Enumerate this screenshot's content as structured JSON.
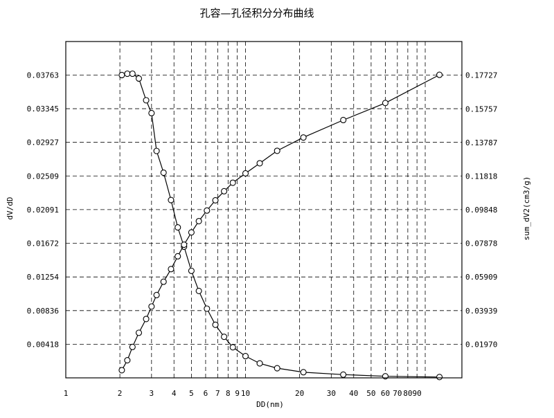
{
  "chart_data": {
    "type": "line",
    "title": "孔容—孔径积分分布曲线",
    "xlabel": "DD(nm)",
    "ylabel_left": "dV/dD",
    "ylabel_right": "sum_dV2(cm3/g)",
    "x_scale": "log",
    "xlim": [
      1,
      160
    ],
    "x_ticks": [
      1,
      2,
      3,
      4,
      5,
      6,
      7,
      8,
      9,
      10,
      20,
      30,
      40,
      50,
      60,
      70,
      80,
      90
    ],
    "x_tick_labels": [
      "1",
      "2",
      "3",
      "4",
      "5",
      "6",
      "7",
      "8",
      "9",
      "10",
      "20",
      "30",
      "40",
      "50",
      "60",
      "70",
      "80",
      "90"
    ],
    "x_grid_extra": [
      100
    ],
    "ylim_left": [
      0,
      0.0418
    ],
    "y_ticks_left": [
      "0.00418",
      "0.00836",
      "0.01254",
      "0.01672",
      "0.02091",
      "0.02509",
      "0.02927",
      "0.03345",
      "0.03763"
    ],
    "ylim_right": [
      0,
      0.197
    ],
    "y_ticks_right": [
      "0.01970",
      "0.03939",
      "0.05909",
      "0.07878",
      "0.09848",
      "0.11818",
      "0.13787",
      "0.15757",
      "0.17727"
    ],
    "grid": true,
    "marker": "open-circle",
    "series": [
      {
        "axis": "left",
        "x": [
          2.05,
          2.2,
          2.35,
          2.55,
          2.8,
          3.0,
          3.2,
          3.5,
          3.85,
          4.2,
          4.55,
          5.0,
          5.5,
          6.1,
          6.8,
          7.6,
          8.5,
          10.0,
          12.0,
          15.0,
          21.0,
          35.0,
          60.0,
          120.0
        ],
        "y": [
          0.03763,
          0.0378,
          0.0378,
          0.0372,
          0.0345,
          0.0329,
          0.0282,
          0.0255,
          0.0221,
          0.0187,
          0.0163,
          0.0133,
          0.0108,
          0.0086,
          0.0066,
          0.0051,
          0.0038,
          0.0027,
          0.0018,
          0.0012,
          0.0007,
          0.0004,
          0.0002,
          0.0001
        ]
      },
      {
        "axis": "right",
        "x": [
          2.05,
          2.2,
          2.35,
          2.55,
          2.8,
          3.0,
          3.2,
          3.5,
          3.85,
          4.2,
          4.55,
          5.0,
          5.5,
          6.1,
          6.8,
          7.6,
          8.5,
          10.0,
          12.0,
          15.0,
          21.0,
          35.0,
          60.0,
          120.0
        ],
        "y": [
          0.0045,
          0.0103,
          0.0181,
          0.0264,
          0.0345,
          0.0418,
          0.0485,
          0.0563,
          0.0637,
          0.0712,
          0.078,
          0.0852,
          0.0918,
          0.098,
          0.104,
          0.1093,
          0.1143,
          0.1198,
          0.1257,
          0.133,
          0.1408,
          0.151,
          0.161,
          0.1775
        ]
      }
    ]
  }
}
